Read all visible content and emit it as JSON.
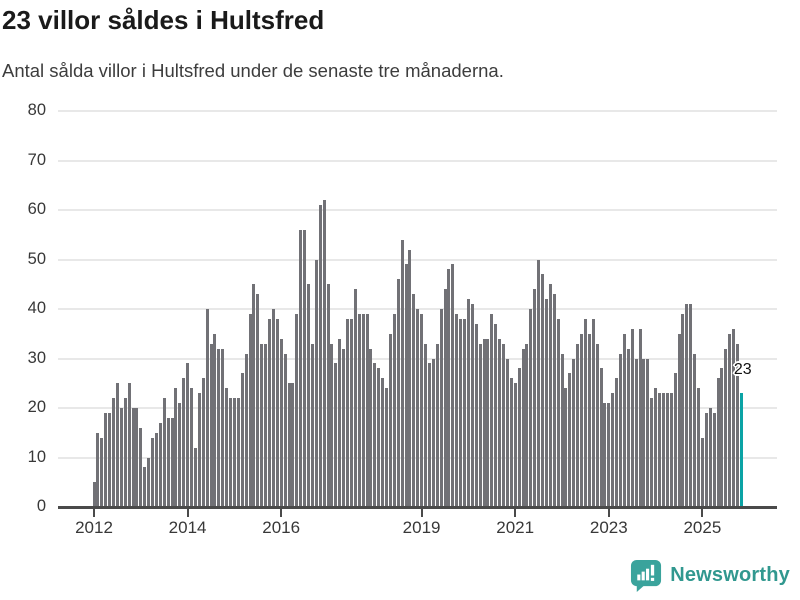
{
  "header": {
    "title": "23 villor såldes i Hultsfred",
    "subtitle": "Antal sålda villor i Hultsfred under de senaste tre månaderna."
  },
  "chart_data": {
    "type": "bar",
    "title": "23 villor såldes i Hultsfred",
    "subtitle": "Antal sålda villor i Hultsfred under de senaste tre månaderna.",
    "x_start": {
      "year": 2012,
      "month": 1
    },
    "x_frequency": "monthly",
    "x_tick_years": [
      2012,
      2014,
      2016,
      2019,
      2021,
      2023,
      2025
    ],
    "y_ticks": [
      0,
      10,
      20,
      30,
      40,
      50,
      60,
      70,
      80
    ],
    "ylim": [
      0,
      80
    ],
    "grid": "horizontal",
    "bar_color": "#717176",
    "values": [
      5,
      15,
      14,
      19,
      19,
      22,
      25,
      20,
      22,
      25,
      20,
      20,
      16,
      8,
      10,
      14,
      15,
      17,
      22,
      18,
      18,
      24,
      21,
      26,
      29,
      24,
      12,
      23,
      26,
      40,
      33,
      35,
      32,
      32,
      24,
      22,
      22,
      22,
      27,
      31,
      39,
      45,
      43,
      33,
      33,
      38,
      40,
      38,
      34,
      31,
      25,
      25,
      39,
      56,
      56,
      45,
      33,
      50,
      61,
      62,
      45,
      33,
      29,
      34,
      32,
      38,
      38,
      44,
      39,
      39,
      39,
      32,
      29,
      28,
      26,
      24,
      35,
      39,
      46,
      54,
      49,
      52,
      43,
      40,
      39,
      33,
      29,
      30,
      33,
      40,
      44,
      48,
      49,
      39,
      38,
      38,
      42,
      41,
      37,
      33,
      34,
      34,
      39,
      37,
      34,
      33,
      30,
      26,
      25,
      28,
      32,
      33,
      40,
      44,
      50,
      47,
      42,
      45,
      43,
      38,
      31,
      24,
      27,
      30,
      33,
      35,
      38,
      35,
      38,
      33,
      28,
      21,
      21,
      23,
      26,
      31,
      35,
      32,
      36,
      30,
      36,
      30,
      30,
      22,
      24,
      23,
      23,
      23,
      23,
      27,
      35,
      39,
      41,
      41,
      31,
      24,
      14,
      19,
      20,
      19,
      26,
      28,
      32,
      35,
      36,
      33,
      23
    ],
    "highlight": {
      "index": 166,
      "value": 23,
      "label": "23",
      "color": "#0ba3a5"
    }
  },
  "footer": {
    "brand": "Newsworthy"
  },
  "colors": {
    "bar": "#717176",
    "highlight": "#0ba3a5",
    "gridline": "#e8e8e8",
    "axis": "#4a4a4a",
    "logo": "#3aa39c"
  }
}
